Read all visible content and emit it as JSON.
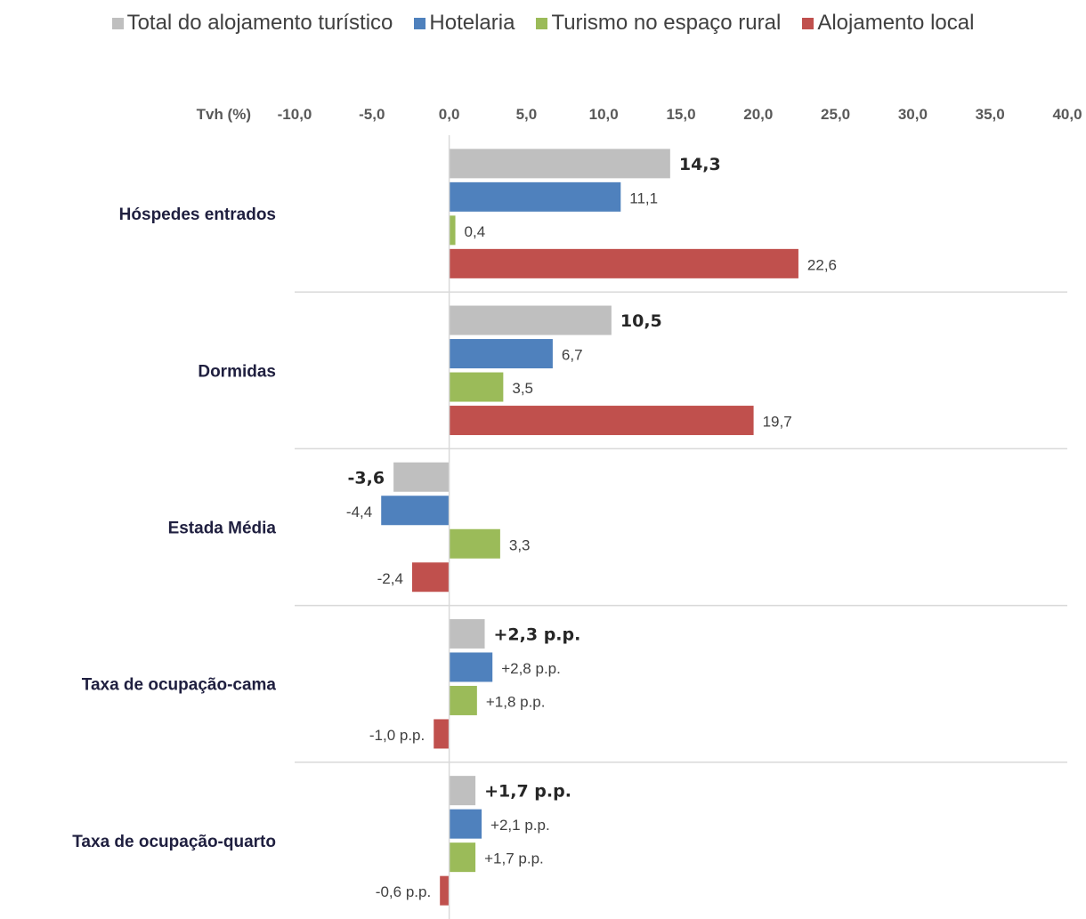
{
  "chart_data": {
    "type": "bar",
    "orientation": "horizontal",
    "axis_title": "Tvh (%)",
    "xlim": [
      -10,
      40
    ],
    "xticks": [
      -10,
      -5,
      0,
      5,
      10,
      15,
      20,
      25,
      30,
      35,
      40
    ],
    "tick_labels": [
      "-10,0",
      "-5,0",
      "0,0",
      "5,0",
      "10,0",
      "15,0",
      "20,0",
      "25,0",
      "30,0",
      "35,0",
      "40,0"
    ],
    "categories": [
      "Hóspedes entrados",
      "Dormidas",
      "Estada Média",
      "Taxa de ocupação-cama",
      "Taxa de ocupação-quarto"
    ],
    "series": [
      {
        "name": "Total do alojamento turístico",
        "color": "#bfbfbf",
        "values": [
          14.3,
          10.5,
          -3.6,
          2.3,
          1.7
        ],
        "labels": [
          "14,3",
          "10,5",
          "-3,6",
          "+2,3 p.p.",
          "+1,7 p.p."
        ]
      },
      {
        "name": "Hotelaria",
        "color": "#4f81bd",
        "values": [
          11.1,
          6.7,
          -4.4,
          2.8,
          2.1
        ],
        "labels": [
          "11,1",
          "6,7",
          "-4,4",
          "+2,8 p.p.",
          "+2,1 p.p."
        ]
      },
      {
        "name": "Turismo no espaço rural",
        "color": "#9bbb59",
        "values": [
          0.4,
          3.5,
          3.3,
          1.8,
          1.7
        ],
        "labels": [
          "0,4",
          "3,5",
          "3,3",
          "+1,8 p.p.",
          "+1,7 p.p."
        ]
      },
      {
        "name": "Alojamento local",
        "color": "#c0504d",
        "values": [
          22.6,
          19.7,
          -2.4,
          -1.0,
          -0.6
        ],
        "labels": [
          "22,6",
          "19,7",
          "-2,4",
          "-1,0 p.p.",
          "-0,6 p.p."
        ]
      }
    ],
    "legend_position": "top",
    "grid": false,
    "category_separators": true
  }
}
